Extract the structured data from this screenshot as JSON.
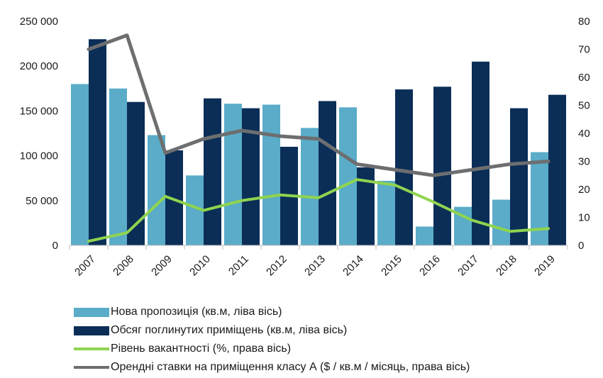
{
  "chart_data": {
    "type": "bar+line",
    "categories": [
      "2007",
      "2008",
      "2009",
      "2010",
      "2011",
      "2012",
      "2013",
      "2014",
      "2015",
      "2016",
      "2017",
      "2018",
      "2019"
    ],
    "y_left": {
      "ticks": [
        "0",
        "50 000",
        "100 000",
        "150 000",
        "200 000",
        "250 000"
      ],
      "lim": [
        0,
        250000
      ]
    },
    "y_right": {
      "ticks": [
        "0",
        "10",
        "20",
        "30",
        "40",
        "50",
        "60",
        "70",
        "80"
      ],
      "lim": [
        0,
        80
      ]
    },
    "series": [
      {
        "name": "Нова пропозиція (кв.м, ліва вісь)",
        "kind": "bar",
        "axis": "left",
        "color": "#5aacc8",
        "values": [
          180000,
          175000,
          123000,
          78000,
          158000,
          157000,
          131000,
          154000,
          72000,
          21000,
          43000,
          51000,
          104000
        ]
      },
      {
        "name": "Обсяг поглинутих приміщень (кв.м, ліва вісь)",
        "kind": "bar",
        "axis": "left",
        "color": "#0b2e57",
        "values": [
          230000,
          160000,
          106000,
          164000,
          153000,
          110000,
          161000,
          87000,
          174000,
          177000,
          205000,
          153000,
          168000
        ]
      },
      {
        "name": "Рівень вакантності (%, права вісь)",
        "kind": "line",
        "axis": "right",
        "color": "#8fd44f",
        "values": [
          1.5,
          4.5,
          17.5,
          12.5,
          16,
          18,
          17,
          23.5,
          21.5,
          15.5,
          9,
          5,
          6
        ]
      },
      {
        "name": "Орендні ставки на приміщення класу А ($ / кв.м / місяць, права вісь)",
        "kind": "line",
        "axis": "right",
        "color": "#6d6e70",
        "values": [
          70,
          75,
          33,
          38,
          41,
          39,
          38,
          29,
          27,
          25,
          27,
          29,
          30
        ]
      }
    ],
    "grid": false,
    "legend": "bottom-left"
  }
}
